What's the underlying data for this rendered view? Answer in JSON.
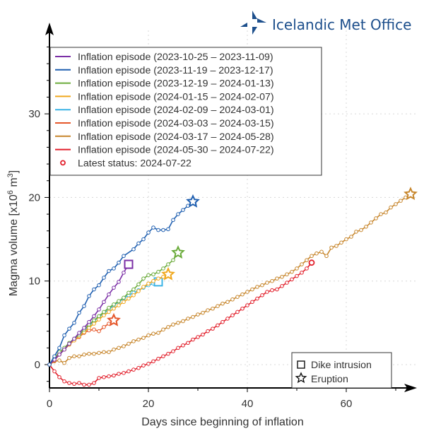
{
  "logo": {
    "name": "Icelandic Met Office",
    "color": "#1d4f8c",
    "icon": "compass-star-logo-icon"
  },
  "chart_data": {
    "type": "line",
    "title": "",
    "xlabel": "Days since beginning of inflation",
    "ylabel": "Magma volume [x10",
    "ylabel_sup": "6",
    "ylabel_unit": " m",
    "ylabel_sup2": "3",
    "ylabel_end": "]",
    "xlim": [
      0,
      72
    ],
    "ylim": [
      -2.6,
      40
    ],
    "xticks": [
      0,
      20,
      40,
      60
    ],
    "xtick_labels": [
      "0",
      "20",
      "40",
      "60"
    ],
    "xminor": [
      10,
      30,
      50,
      70
    ],
    "yticks": [
      0,
      10,
      20,
      30
    ],
    "ytick_labels": [
      "0",
      "10",
      "20",
      "30"
    ],
    "yminor": [
      -2,
      2,
      4,
      6,
      8,
      12,
      14,
      16,
      18,
      22,
      24,
      26,
      28,
      32,
      34,
      36,
      38
    ],
    "grid": true,
    "legend_position": "top-left",
    "series": [
      {
        "name": "Inflation episode (2023-10-25 – 2023-11-09)",
        "color": "#7b2fa6",
        "end_marker": "square",
        "points": [
          [
            0,
            0
          ],
          [
            1,
            0.6
          ],
          [
            2,
            1.2
          ],
          [
            3,
            1.8
          ],
          [
            4,
            2.5
          ],
          [
            5,
            3.1
          ],
          [
            6,
            3.8
          ],
          [
            7,
            4.4
          ],
          [
            8,
            5.1
          ],
          [
            9,
            5.8
          ],
          [
            10,
            6.6
          ],
          [
            11,
            7.5
          ],
          [
            12,
            8.4
          ],
          [
            13,
            9.2
          ],
          [
            14,
            9.9
          ],
          [
            15,
            11.0
          ],
          [
            16,
            12.0
          ]
        ]
      },
      {
        "name": "Inflation episode (2023-11-19 – 2023-12-17)",
        "color": "#1f5fb0",
        "end_marker": "star",
        "points": [
          [
            0,
            0
          ],
          [
            1,
            1.0
          ],
          [
            2,
            2.0
          ],
          [
            3,
            3.5
          ],
          [
            4,
            4.3
          ],
          [
            5,
            5.0
          ],
          [
            6,
            6.2
          ],
          [
            7,
            7.0
          ],
          [
            8,
            8.2
          ],
          [
            9,
            9.0
          ],
          [
            10,
            9.5
          ],
          [
            11,
            10.4
          ],
          [
            12,
            11.2
          ],
          [
            13,
            11.5
          ],
          [
            14,
            12.2
          ],
          [
            15,
            13.0
          ],
          [
            17,
            13.8
          ],
          [
            18,
            14.5
          ],
          [
            19,
            15.0
          ],
          [
            20,
            15.8
          ],
          [
            21,
            16.4
          ],
          [
            22,
            16.1
          ],
          [
            23,
            16.1
          ],
          [
            24,
            16.2
          ],
          [
            25,
            17.3
          ],
          [
            26,
            18.0
          ],
          [
            27,
            18.5
          ],
          [
            28,
            19.0
          ],
          [
            29,
            19.5
          ]
        ]
      },
      {
        "name": "Inflation episode (2023-12-19 – 2024-01-13)",
        "color": "#6aab3a",
        "end_marker": "star",
        "points": [
          [
            0,
            0
          ],
          [
            1,
            0.8
          ],
          [
            2,
            1.5
          ],
          [
            3,
            2.0
          ],
          [
            4,
            2.6
          ],
          [
            5,
            3.1
          ],
          [
            6,
            3.6
          ],
          [
            7,
            4.2
          ],
          [
            8,
            4.8
          ],
          [
            9,
            5.3
          ],
          [
            10,
            5.8
          ],
          [
            11,
            6.3
          ],
          [
            12,
            6.8
          ],
          [
            13,
            7.2
          ],
          [
            14,
            7.6
          ],
          [
            15,
            8.0
          ],
          [
            16,
            8.6
          ],
          [
            17,
            9.0
          ],
          [
            18,
            9.6
          ],
          [
            19,
            10.3
          ],
          [
            20,
            10.7
          ],
          [
            21,
            10.8
          ],
          [
            22,
            11.1
          ],
          [
            23,
            11.5
          ],
          [
            24,
            12.0
          ],
          [
            25,
            12.5
          ],
          [
            26,
            13.4
          ]
        ]
      },
      {
        "name": "Inflation episode (2024-01-15 – 2024-02-07)",
        "color": "#f0a81e",
        "end_marker": "star",
        "points": [
          [
            0,
            0
          ],
          [
            1,
            0.6
          ],
          [
            2,
            1.3
          ],
          [
            3,
            1.8
          ],
          [
            4,
            2.4
          ],
          [
            5,
            2.9
          ],
          [
            6,
            3.4
          ],
          [
            7,
            3.9
          ],
          [
            8,
            4.4
          ],
          [
            9,
            4.9
          ],
          [
            10,
            5.4
          ],
          [
            11,
            5.9
          ],
          [
            12,
            6.3
          ],
          [
            13,
            6.7
          ],
          [
            14,
            7.1
          ],
          [
            15,
            7.5
          ],
          [
            16,
            7.9
          ],
          [
            17,
            8.3
          ],
          [
            18,
            8.8
          ],
          [
            19,
            9.3
          ],
          [
            20,
            9.7
          ],
          [
            21,
            10.0
          ],
          [
            22,
            10.3
          ],
          [
            23,
            10.5
          ],
          [
            24,
            10.8
          ]
        ]
      },
      {
        "name": "Inflation episode (2024-02-09 – 2024-03-01)",
        "color": "#3cb4e6",
        "end_marker": "square",
        "points": [
          [
            0,
            0
          ],
          [
            1,
            0.7
          ],
          [
            2,
            1.3
          ],
          [
            3,
            1.9
          ],
          [
            4,
            2.5
          ],
          [
            5,
            3.0
          ],
          [
            6,
            3.5
          ],
          [
            7,
            4.1
          ],
          [
            8,
            4.6
          ],
          [
            9,
            5.2
          ],
          [
            10,
            5.7
          ],
          [
            11,
            6.1
          ],
          [
            12,
            6.6
          ],
          [
            13,
            7.1
          ],
          [
            14,
            7.5
          ],
          [
            15,
            7.9
          ],
          [
            16,
            8.3
          ],
          [
            17,
            8.6
          ],
          [
            18,
            8.9
          ],
          [
            19,
            9.2
          ],
          [
            20,
            9.5
          ],
          [
            21,
            9.7
          ],
          [
            22,
            9.9
          ]
        ]
      },
      {
        "name": "Inflation episode (2024-03-03 – 2024-03-15)",
        "color": "#e5572a",
        "end_marker": "star",
        "points": [
          [
            0,
            0
          ],
          [
            1,
            0.5
          ],
          [
            2,
            1.2
          ],
          [
            3,
            1.8
          ],
          [
            4,
            2.4
          ],
          [
            5,
            2.9
          ],
          [
            6,
            3.3
          ],
          [
            7,
            3.8
          ],
          [
            8,
            4.1
          ],
          [
            9,
            4.2
          ],
          [
            10,
            4.0
          ],
          [
            11,
            4.5
          ],
          [
            12,
            4.9
          ],
          [
            13,
            5.3
          ]
        ]
      },
      {
        "name": "Inflation episode (2024-03-17 – 2024-05-28)",
        "color": "#c7862c",
        "end_marker": "star",
        "points": [
          [
            0,
            0
          ],
          [
            1,
            0.4
          ],
          [
            2,
            0.5
          ],
          [
            3,
            0.2
          ],
          [
            4,
            0.8
          ],
          [
            5,
            1.0
          ],
          [
            6,
            1.0
          ],
          [
            7,
            1.2
          ],
          [
            8,
            1.3
          ],
          [
            9,
            1.3
          ],
          [
            10,
            1.4
          ],
          [
            11,
            1.5
          ],
          [
            12,
            1.5
          ],
          [
            13,
            1.8
          ],
          [
            14,
            2.0
          ],
          [
            15,
            2.2
          ],
          [
            16,
            2.5
          ],
          [
            17,
            2.8
          ],
          [
            18,
            3.0
          ],
          [
            19,
            3.2
          ],
          [
            20,
            3.5
          ],
          [
            21,
            3.7
          ],
          [
            22,
            3.8
          ],
          [
            23,
            4.2
          ],
          [
            24,
            4.5
          ],
          [
            25,
            4.8
          ],
          [
            26,
            5.0
          ],
          [
            27,
            5.2
          ],
          [
            28,
            5.5
          ],
          [
            29,
            5.7
          ],
          [
            30,
            6.0
          ],
          [
            31,
            6.2
          ],
          [
            32,
            6.5
          ],
          [
            33,
            6.7
          ],
          [
            34,
            7.0
          ],
          [
            35,
            7.3
          ],
          [
            36,
            7.5
          ],
          [
            37,
            7.8
          ],
          [
            38,
            8.1
          ],
          [
            39,
            8.4
          ],
          [
            40,
            8.7
          ],
          [
            41,
            9.0
          ],
          [
            42,
            9.3
          ],
          [
            43,
            9.5
          ],
          [
            44,
            9.8
          ],
          [
            45,
            10.0
          ],
          [
            46,
            10.3
          ],
          [
            47,
            10.5
          ],
          [
            48,
            10.8
          ],
          [
            49,
            11.1
          ],
          [
            50,
            11.5
          ],
          [
            51,
            12.0
          ],
          [
            52,
            12.5
          ],
          [
            53,
            13.0
          ],
          [
            54,
            13.3
          ],
          [
            55,
            13.5
          ],
          [
            56,
            13.0
          ],
          [
            57,
            14.0
          ],
          [
            58,
            14.2
          ],
          [
            59,
            14.6
          ],
          [
            60,
            15.0
          ],
          [
            61,
            15.3
          ],
          [
            62,
            15.9
          ],
          [
            63,
            16.1
          ],
          [
            64,
            16.5
          ],
          [
            65,
            17.0
          ],
          [
            66,
            17.5
          ],
          [
            67,
            18.0
          ],
          [
            68,
            18.2
          ],
          [
            69,
            18.8
          ],
          [
            70,
            19.2
          ],
          [
            71,
            19.6
          ],
          [
            72,
            20.0
          ],
          [
            73,
            20.4
          ]
        ]
      },
      {
        "name": "Inflation episode (2024-05-30 – 2024-07-22)",
        "color": "#e21f2b",
        "end_marker": "circle",
        "points": [
          [
            0,
            0
          ],
          [
            1,
            -0.8
          ],
          [
            2,
            -1.5
          ],
          [
            3,
            -2.0
          ],
          [
            4,
            -2.2
          ],
          [
            5,
            -2.3
          ],
          [
            6,
            -2.2
          ],
          [
            7,
            -2.4
          ],
          [
            8,
            -2.4
          ],
          [
            9,
            -2.2
          ],
          [
            10,
            -1.6
          ],
          [
            11,
            -1.5
          ],
          [
            12,
            -1.4
          ],
          [
            13,
            -1.3
          ],
          [
            14,
            -1.1
          ],
          [
            15,
            -1.0
          ],
          [
            16,
            -0.8
          ],
          [
            17,
            -0.6
          ],
          [
            18,
            -0.4
          ],
          [
            19,
            -0.1
          ],
          [
            20,
            0.1
          ],
          [
            21,
            0.4
          ],
          [
            22,
            0.7
          ],
          [
            23,
            1.0
          ],
          [
            24,
            1.3
          ],
          [
            25,
            1.6
          ],
          [
            26,
            2.0
          ],
          [
            27,
            2.3
          ],
          [
            28,
            2.6
          ],
          [
            29,
            3.0
          ],
          [
            30,
            3.3
          ],
          [
            31,
            3.6
          ],
          [
            32,
            4.0
          ],
          [
            33,
            4.3
          ],
          [
            34,
            4.7
          ],
          [
            35,
            5.1
          ],
          [
            36,
            5.5
          ],
          [
            37,
            5.9
          ],
          [
            38,
            6.3
          ],
          [
            39,
            6.7
          ],
          [
            40,
            7.1
          ],
          [
            41,
            7.5
          ],
          [
            42,
            7.9
          ],
          [
            43,
            8.3
          ],
          [
            44,
            8.7
          ],
          [
            45,
            8.9
          ],
          [
            46,
            9.0
          ],
          [
            47,
            9.4
          ],
          [
            48,
            9.8
          ],
          [
            49,
            10.2
          ],
          [
            50,
            10.6
          ],
          [
            51,
            11.0
          ],
          [
            52,
            11.5
          ],
          [
            53,
            12.2
          ]
        ]
      }
    ],
    "latest_status": {
      "label": "Latest status: 2024-07-22",
      "color": "#e21f2b"
    },
    "marker_legend": [
      {
        "symbol": "square",
        "label": "Dike intrusion"
      },
      {
        "symbol": "star",
        "label": "Eruption"
      }
    ]
  }
}
